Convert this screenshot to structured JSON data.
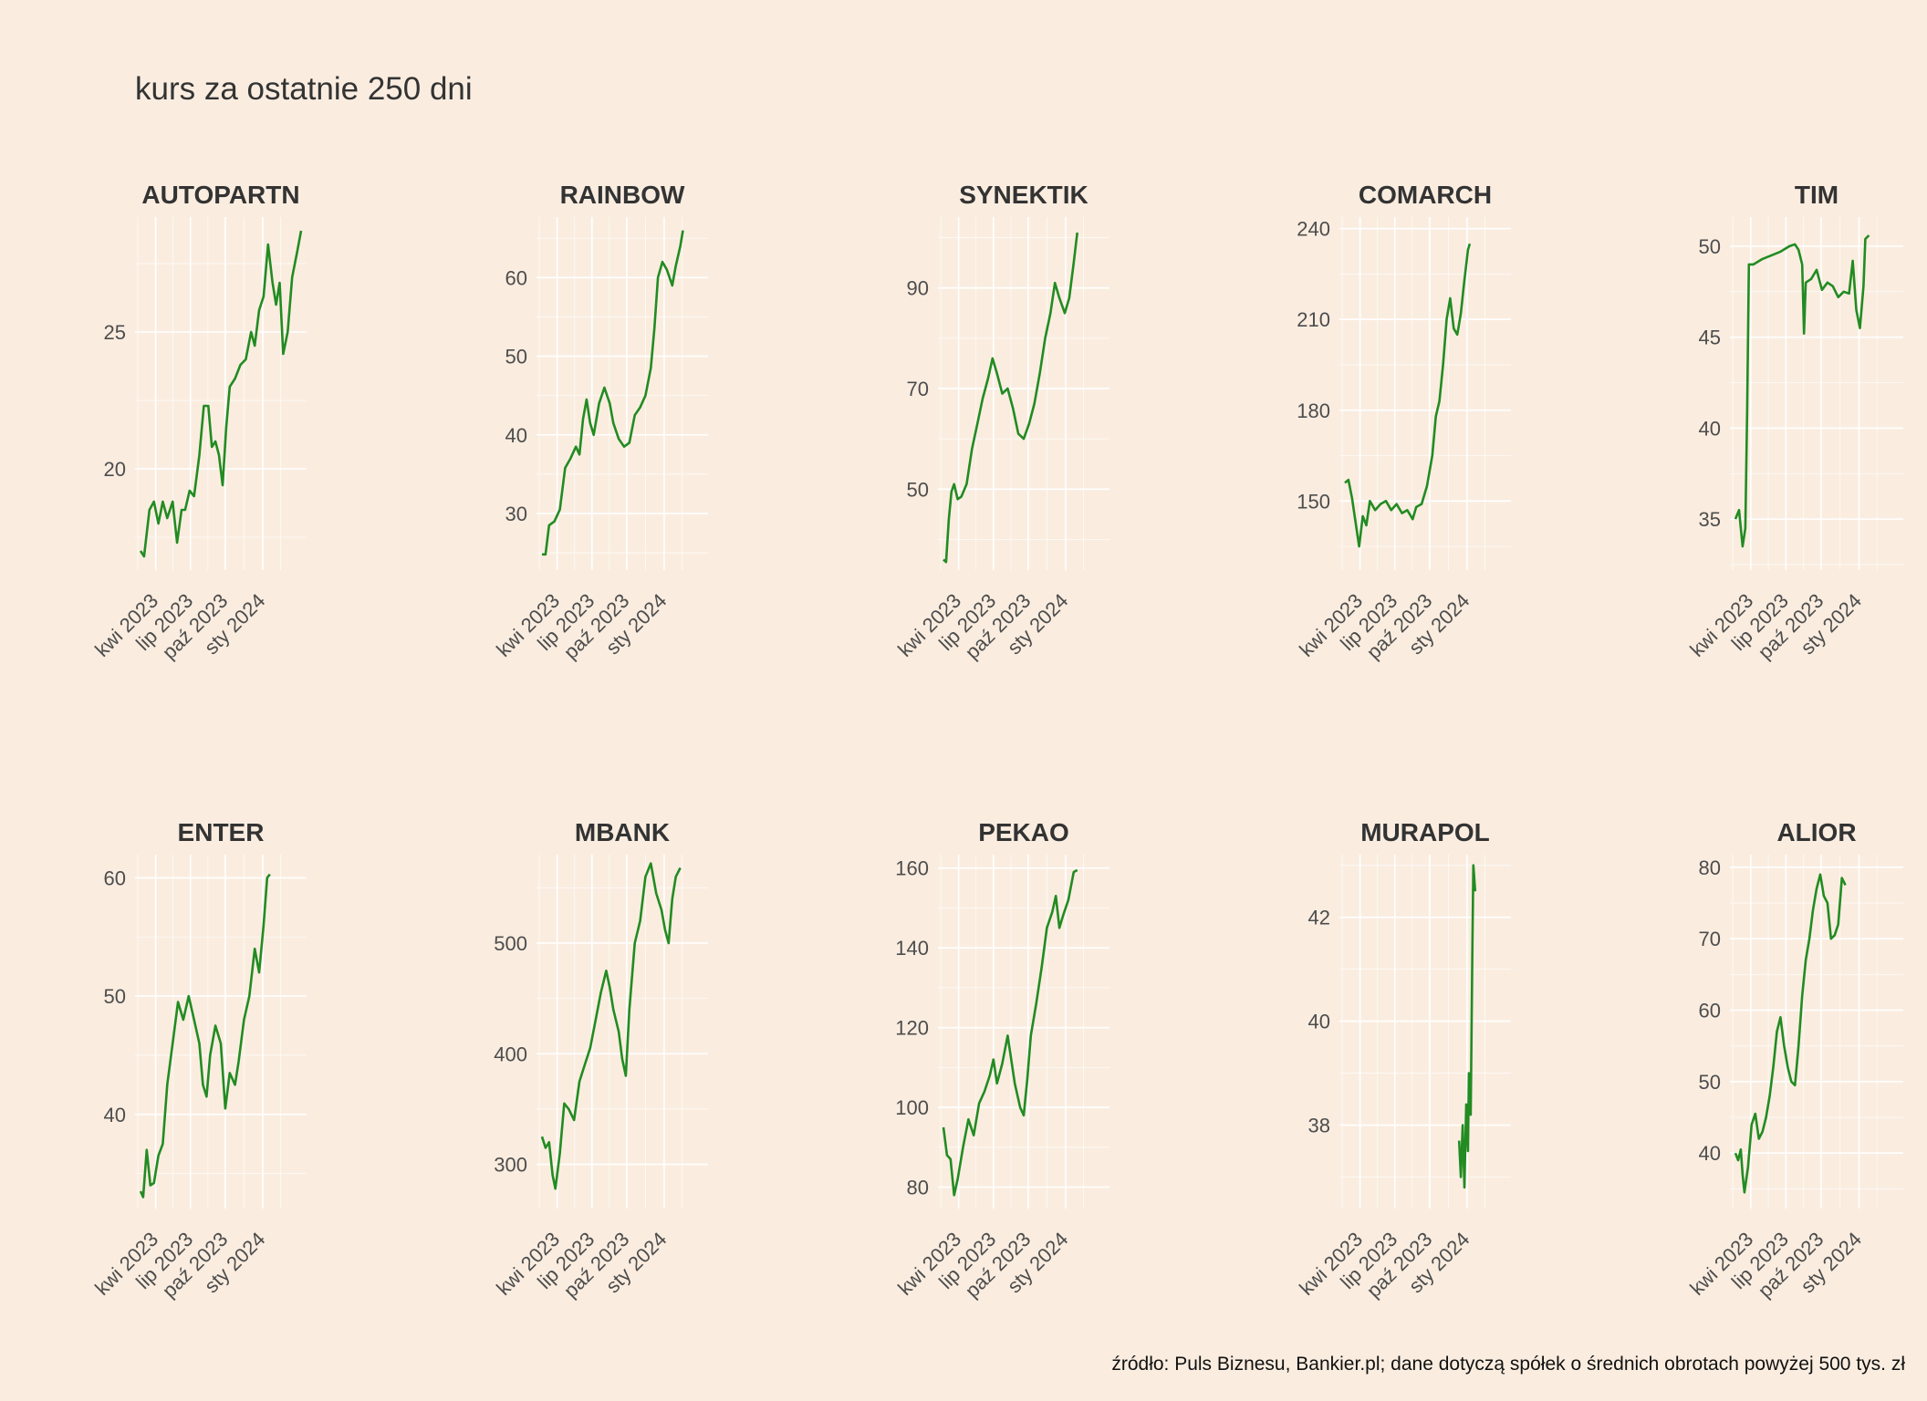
{
  "title": "kurs za ostatnie 250 dni",
  "caption": "źródło: Puls Biznesu, Bankier.pl; dane dotyczą spółek o średnich obrotach powyżej 500 tys. zł",
  "colors": {
    "background": "#FAEDE0",
    "line": "#228B22",
    "grid": "#FFFFFF"
  },
  "chart_data": [
    {
      "type": "line",
      "title": "AUTOPARTN",
      "x_ticks": [
        "kwi 2023",
        "lip 2023",
        "paź 2023",
        "sty 2024"
      ],
      "y_ticks": [
        20,
        25
      ],
      "ylim": [
        16.5,
        29
      ],
      "points": [
        [
          0,
          17.0
        ],
        [
          4,
          16.8
        ],
        [
          10,
          18.5
        ],
        [
          15,
          18.8
        ],
        [
          20,
          18.0
        ],
        [
          25,
          18.8
        ],
        [
          30,
          18.2
        ],
        [
          36,
          18.8
        ],
        [
          41,
          17.3
        ],
        [
          46,
          18.5
        ],
        [
          50,
          18.5
        ],
        [
          55,
          19.2
        ],
        [
          60,
          19.0
        ],
        [
          66,
          20.5
        ],
        [
          71,
          22.3
        ],
        [
          76,
          22.3
        ],
        [
          80,
          20.8
        ],
        [
          84,
          21.0
        ],
        [
          88,
          20.5
        ],
        [
          92,
          19.4
        ],
        [
          96,
          21.5
        ],
        [
          100,
          23.0
        ],
        [
          106,
          23.3
        ],
        [
          112,
          23.8
        ],
        [
          118,
          24.0
        ],
        [
          124,
          25.0
        ],
        [
          128,
          24.5
        ],
        [
          133,
          25.8
        ],
        [
          138,
          26.3
        ],
        [
          143,
          28.2
        ],
        [
          148,
          26.8
        ],
        [
          152,
          26.0
        ],
        [
          156,
          26.8
        ],
        [
          160,
          24.2
        ],
        [
          165,
          25.0
        ],
        [
          170,
          27.0
        ],
        [
          176,
          28.0
        ],
        [
          180,
          28.7
        ]
      ]
    },
    {
      "type": "line",
      "title": "RAINBOW",
      "x_ticks": [
        "kwi 2023",
        "lip 2023",
        "paź 2023",
        "sty 2024"
      ],
      "y_ticks": [
        30,
        40,
        50,
        60
      ],
      "ylim": [
        23.5,
        67
      ],
      "points": [
        [
          0,
          24.8
        ],
        [
          4,
          24.8
        ],
        [
          8,
          28.5
        ],
        [
          14,
          29.0
        ],
        [
          20,
          30.5
        ],
        [
          26,
          35.8
        ],
        [
          32,
          37.0
        ],
        [
          38,
          38.5
        ],
        [
          42,
          37.5
        ],
        [
          46,
          42.0
        ],
        [
          50,
          44.5
        ],
        [
          54,
          41.5
        ],
        [
          58,
          40.0
        ],
        [
          64,
          44.0
        ],
        [
          70,
          46.0
        ],
        [
          76,
          44.0
        ],
        [
          80,
          41.5
        ],
        [
          86,
          39.5
        ],
        [
          92,
          38.5
        ],
        [
          98,
          39.0
        ],
        [
          104,
          42.5
        ],
        [
          110,
          43.5
        ],
        [
          116,
          45.0
        ],
        [
          122,
          48.5
        ],
        [
          126,
          53.5
        ],
        [
          130,
          60.0
        ],
        [
          135,
          62.0
        ],
        [
          140,
          61.0
        ],
        [
          146,
          59.0
        ],
        [
          150,
          61.5
        ],
        [
          155,
          64.0
        ],
        [
          158,
          66.0
        ]
      ]
    },
    {
      "type": "line",
      "title": "SYNEKTIK",
      "x_ticks": [
        "kwi 2023",
        "lip 2023",
        "paź 2023",
        "sty 2024"
      ],
      "y_ticks": [
        50,
        70,
        90
      ],
      "ylim": [
        35,
        103
      ],
      "points": [
        [
          0,
          36.0
        ],
        [
          3,
          35.5
        ],
        [
          6,
          44.0
        ],
        [
          9,
          49.5
        ],
        [
          12,
          51.0
        ],
        [
          16,
          48.0
        ],
        [
          20,
          48.5
        ],
        [
          26,
          51.0
        ],
        [
          32,
          58.0
        ],
        [
          38,
          63.0
        ],
        [
          44,
          68.0
        ],
        [
          50,
          72.0
        ],
        [
          55,
          76.0
        ],
        [
          60,
          73.0
        ],
        [
          66,
          69.0
        ],
        [
          72,
          70.0
        ],
        [
          78,
          66.0
        ],
        [
          84,
          61.0
        ],
        [
          90,
          60.0
        ],
        [
          96,
          63.0
        ],
        [
          102,
          67.0
        ],
        [
          108,
          73.0
        ],
        [
          114,
          80.0
        ],
        [
          120,
          85.0
        ],
        [
          125,
          91.0
        ],
        [
          130,
          88.0
        ],
        [
          136,
          85.0
        ],
        [
          141,
          88.0
        ],
        [
          146,
          95.0
        ],
        [
          150,
          101.0
        ]
      ]
    },
    {
      "type": "line",
      "title": "COMARCH",
      "x_ticks": [
        "kwi 2023",
        "lip 2023",
        "paź 2023",
        "sty 2024"
      ],
      "y_ticks": [
        150,
        180,
        210,
        240
      ],
      "ylim": [
        129,
        242
      ],
      "points": [
        [
          0,
          156.0
        ],
        [
          4,
          157.0
        ],
        [
          8,
          151.0
        ],
        [
          12,
          143.0
        ],
        [
          16,
          135.0
        ],
        [
          20,
          145.0
        ],
        [
          24,
          142.0
        ],
        [
          28,
          150.0
        ],
        [
          34,
          147.0
        ],
        [
          40,
          149.0
        ],
        [
          46,
          150.0
        ],
        [
          52,
          147.0
        ],
        [
          58,
          149.0
        ],
        [
          64,
          146.0
        ],
        [
          70,
          147.0
        ],
        [
          76,
          144.0
        ],
        [
          80,
          148.0
        ],
        [
          86,
          149.0
        ],
        [
          92,
          155.0
        ],
        [
          98,
          165.0
        ],
        [
          102,
          178.0
        ],
        [
          106,
          183.0
        ],
        [
          110,
          195.0
        ],
        [
          114,
          210.0
        ],
        [
          118,
          217.0
        ],
        [
          122,
          207.0
        ],
        [
          126,
          205.0
        ],
        [
          130,
          212.0
        ],
        [
          134,
          223.0
        ],
        [
          138,
          233.0
        ],
        [
          140,
          235.0
        ]
      ]
    },
    {
      "type": "line",
      "title": "TIM",
      "x_ticks": [
        "kwi 2023",
        "lip 2023",
        "paź 2023",
        "sty 2024"
      ],
      "y_ticks": [
        35,
        40,
        45,
        50
      ],
      "ylim": [
        32.5,
        51.3
      ],
      "points": [
        [
          0,
          35.0
        ],
        [
          4,
          35.5
        ],
        [
          8,
          33.5
        ],
        [
          11,
          34.5
        ],
        [
          13,
          41.0
        ],
        [
          15,
          49.0
        ],
        [
          20,
          49.0
        ],
        [
          30,
          49.3
        ],
        [
          40,
          49.5
        ],
        [
          50,
          49.7
        ],
        [
          60,
          50.0
        ],
        [
          66,
          50.1
        ],
        [
          70,
          49.8
        ],
        [
          74,
          49.0
        ],
        [
          76,
          45.2
        ],
        [
          78,
          48.0
        ],
        [
          84,
          48.2
        ],
        [
          90,
          48.7
        ],
        [
          96,
          47.6
        ],
        [
          102,
          48.0
        ],
        [
          108,
          47.8
        ],
        [
          114,
          47.2
        ],
        [
          120,
          47.5
        ],
        [
          126,
          47.4
        ],
        [
          130,
          49.2
        ],
        [
          134,
          46.5
        ],
        [
          138,
          45.5
        ],
        [
          142,
          47.8
        ],
        [
          144,
          50.4
        ],
        [
          148,
          50.6
        ]
      ]
    },
    {
      "type": "line",
      "title": "ENTER",
      "x_ticks": [
        "kwi 2023",
        "lip 2023",
        "paź 2023",
        "sty 2024"
      ],
      "y_ticks": [
        40,
        50,
        60
      ],
      "ylim": [
        32.5,
        61.5
      ],
      "points": [
        [
          0,
          33.5
        ],
        [
          3,
          33.0
        ],
        [
          7,
          37.0
        ],
        [
          11,
          34.0
        ],
        [
          15,
          34.2
        ],
        [
          20,
          36.5
        ],
        [
          25,
          37.5
        ],
        [
          30,
          42.5
        ],
        [
          36,
          46.0
        ],
        [
          42,
          49.5
        ],
        [
          48,
          48.0
        ],
        [
          54,
          50.0
        ],
        [
          60,
          48.0
        ],
        [
          66,
          46.0
        ],
        [
          70,
          42.5
        ],
        [
          74,
          41.5
        ],
        [
          78,
          45.0
        ],
        [
          84,
          47.5
        ],
        [
          90,
          46.0
        ],
        [
          95,
          40.5
        ],
        [
          100,
          43.5
        ],
        [
          106,
          42.5
        ],
        [
          110,
          44.5
        ],
        [
          116,
          48.0
        ],
        [
          122,
          50.0
        ],
        [
          128,
          54.0
        ],
        [
          133,
          52.0
        ],
        [
          138,
          56.0
        ],
        [
          142,
          60.0
        ],
        [
          145,
          60.3
        ]
      ]
    },
    {
      "type": "line",
      "title": "MBANK",
      "x_ticks": [
        "kwi 2023",
        "lip 2023",
        "paź 2023",
        "sty 2024"
      ],
      "y_ticks": [
        300,
        400,
        500
      ],
      "ylim": [
        265,
        575
      ],
      "points": [
        [
          0,
          325.0
        ],
        [
          4,
          315.0
        ],
        [
          8,
          320.0
        ],
        [
          12,
          290.0
        ],
        [
          15,
          278.0
        ],
        [
          20,
          310.0
        ],
        [
          25,
          355.0
        ],
        [
          30,
          350.0
        ],
        [
          36,
          340.0
        ],
        [
          42,
          375.0
        ],
        [
          48,
          390.0
        ],
        [
          54,
          405.0
        ],
        [
          60,
          430.0
        ],
        [
          66,
          455.0
        ],
        [
          72,
          475.0
        ],
        [
          76,
          460.0
        ],
        [
          80,
          440.0
        ],
        [
          86,
          420.0
        ],
        [
          90,
          395.0
        ],
        [
          94,
          380.0
        ],
        [
          98,
          440.0
        ],
        [
          104,
          500.0
        ],
        [
          110,
          520.0
        ],
        [
          116,
          560.0
        ],
        [
          122,
          572.0
        ],
        [
          128,
          545.0
        ],
        [
          134,
          530.0
        ],
        [
          138,
          512.0
        ],
        [
          142,
          500.0
        ],
        [
          146,
          540.0
        ],
        [
          150,
          560.0
        ],
        [
          155,
          568.0
        ]
      ]
    },
    {
      "type": "line",
      "title": "PEKAO",
      "x_ticks": [
        "kwi 2023",
        "lip 2023",
        "paź 2023",
        "sty 2024"
      ],
      "y_ticks": [
        80,
        100,
        120,
        140,
        160
      ],
      "ylim": [
        76,
        162
      ],
      "points": [
        [
          0,
          95.0
        ],
        [
          4,
          88.0
        ],
        [
          8,
          87.0
        ],
        [
          12,
          78.0
        ],
        [
          16,
          82.0
        ],
        [
          22,
          90.0
        ],
        [
          28,
          97.0
        ],
        [
          34,
          93.0
        ],
        [
          40,
          101.0
        ],
        [
          46,
          104.0
        ],
        [
          52,
          108.0
        ],
        [
          56,
          112.0
        ],
        [
          60,
          106.0
        ],
        [
          66,
          111.0
        ],
        [
          72,
          118.0
        ],
        [
          76,
          112.0
        ],
        [
          80,
          106.0
        ],
        [
          86,
          100.0
        ],
        [
          90,
          98.0
        ],
        [
          94,
          107.0
        ],
        [
          98,
          118.0
        ],
        [
          104,
          126.0
        ],
        [
          110,
          135.0
        ],
        [
          116,
          145.0
        ],
        [
          122,
          149.0
        ],
        [
          126,
          153.0
        ],
        [
          130,
          145.0
        ],
        [
          134,
          148.0
        ],
        [
          140,
          152.0
        ],
        [
          146,
          159.0
        ],
        [
          150,
          159.5
        ]
      ]
    },
    {
      "type": "line",
      "title": "MURAPOL",
      "x_ticks": [
        "kwi 2023",
        "lip 2023",
        "paź 2023",
        "sty 2024"
      ],
      "y_ticks": [
        38,
        40,
        42
      ],
      "ylim": [
        36.5,
        43.1
      ],
      "points": [
        [
          128,
          37.7
        ],
        [
          130,
          37.0
        ],
        [
          132,
          38.0
        ],
        [
          134,
          36.8
        ],
        [
          136,
          38.4
        ],
        [
          138,
          37.5
        ],
        [
          139,
          39.0
        ],
        [
          141,
          38.2
        ],
        [
          143,
          41.5
        ],
        [
          144,
          43.0
        ],
        [
          146,
          42.5
        ]
      ]
    },
    {
      "type": "line",
      "title": "ALIOR",
      "x_ticks": [
        "kwi 2023",
        "lip 2023",
        "paź 2023",
        "sty 2024"
      ],
      "y_ticks": [
        40,
        50,
        60,
        70,
        80
      ],
      "ylim": [
        33,
        81
      ],
      "points": [
        [
          0,
          40.0
        ],
        [
          3,
          39.0
        ],
        [
          6,
          40.5
        ],
        [
          8,
          37.0
        ],
        [
          10,
          34.5
        ],
        [
          14,
          38.0
        ],
        [
          18,
          44.0
        ],
        [
          22,
          45.5
        ],
        [
          26,
          42.0
        ],
        [
          30,
          43.0
        ],
        [
          34,
          45.0
        ],
        [
          38,
          48.0
        ],
        [
          42,
          52.0
        ],
        [
          46,
          57.0
        ],
        [
          50,
          59.0
        ],
        [
          54,
          55.0
        ],
        [
          58,
          52.0
        ],
        [
          62,
          50.0
        ],
        [
          66,
          49.5
        ],
        [
          70,
          55.0
        ],
        [
          74,
          62.0
        ],
        [
          78,
          67.0
        ],
        [
          82,
          70.0
        ],
        [
          86,
          74.0
        ],
        [
          90,
          77.0
        ],
        [
          94,
          79.0
        ],
        [
          98,
          76.0
        ],
        [
          102,
          75.0
        ],
        [
          106,
          70.0
        ],
        [
          110,
          70.5
        ],
        [
          114,
          72.0
        ],
        [
          118,
          78.5
        ],
        [
          122,
          77.5
        ]
      ]
    }
  ]
}
